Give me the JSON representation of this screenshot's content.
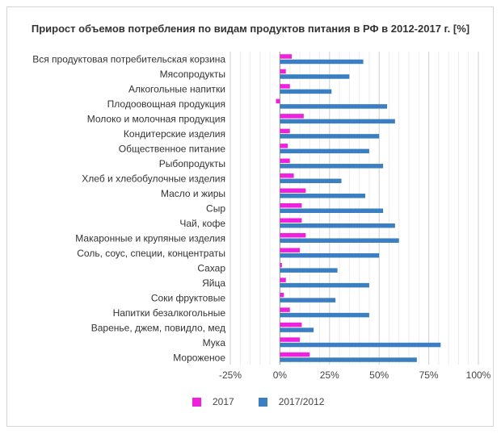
{
  "chart_data": {
    "type": "bar",
    "orientation": "horizontal",
    "title": "Прирост объемов потребления по видам продуктов питания в РФ в 2012-2017 г. [%]",
    "categories": [
      "Вся продуктовая потребительская корзина",
      "Мясопродукты",
      "Алкогольные напитки",
      "Плодоовощная продукция",
      "Молоко и молочная продукция",
      "Кондитерские изделия",
      "Общественное питание",
      "Рыбопродукты",
      "Хлеб и хлебобулочные изделия",
      "Масло и жиры",
      "Сыр",
      "Чай, кофе",
      "Макаронные и крупяные изделия",
      "Соль, соус, специи, концентраты",
      "Сахар",
      "Яйца",
      "Соки фруктовые",
      "Напитки безалкогольные",
      "Варенье, джем, повидло, мед",
      "Мука",
      "Мороженое"
    ],
    "series": [
      {
        "name": "2017",
        "color": "#ee22dd",
        "values": [
          6,
          3,
          5,
          -2,
          12,
          5,
          4,
          5,
          7,
          13,
          11,
          11,
          13,
          10,
          1,
          3,
          2,
          5,
          11,
          10,
          15
        ]
      },
      {
        "name": "2017/2012",
        "color": "#3a7fc1",
        "values": [
          42,
          35,
          26,
          54,
          58,
          50,
          45,
          52,
          31,
          43,
          52,
          58,
          60,
          50,
          29,
          45,
          28,
          45,
          17,
          81,
          69
        ]
      }
    ],
    "xlim": [
      -25,
      100
    ],
    "xticks": [
      "-25%",
      "0%",
      "25%",
      "50%",
      "75%",
      "100%"
    ],
    "grid": true,
    "legend": "bottom"
  }
}
